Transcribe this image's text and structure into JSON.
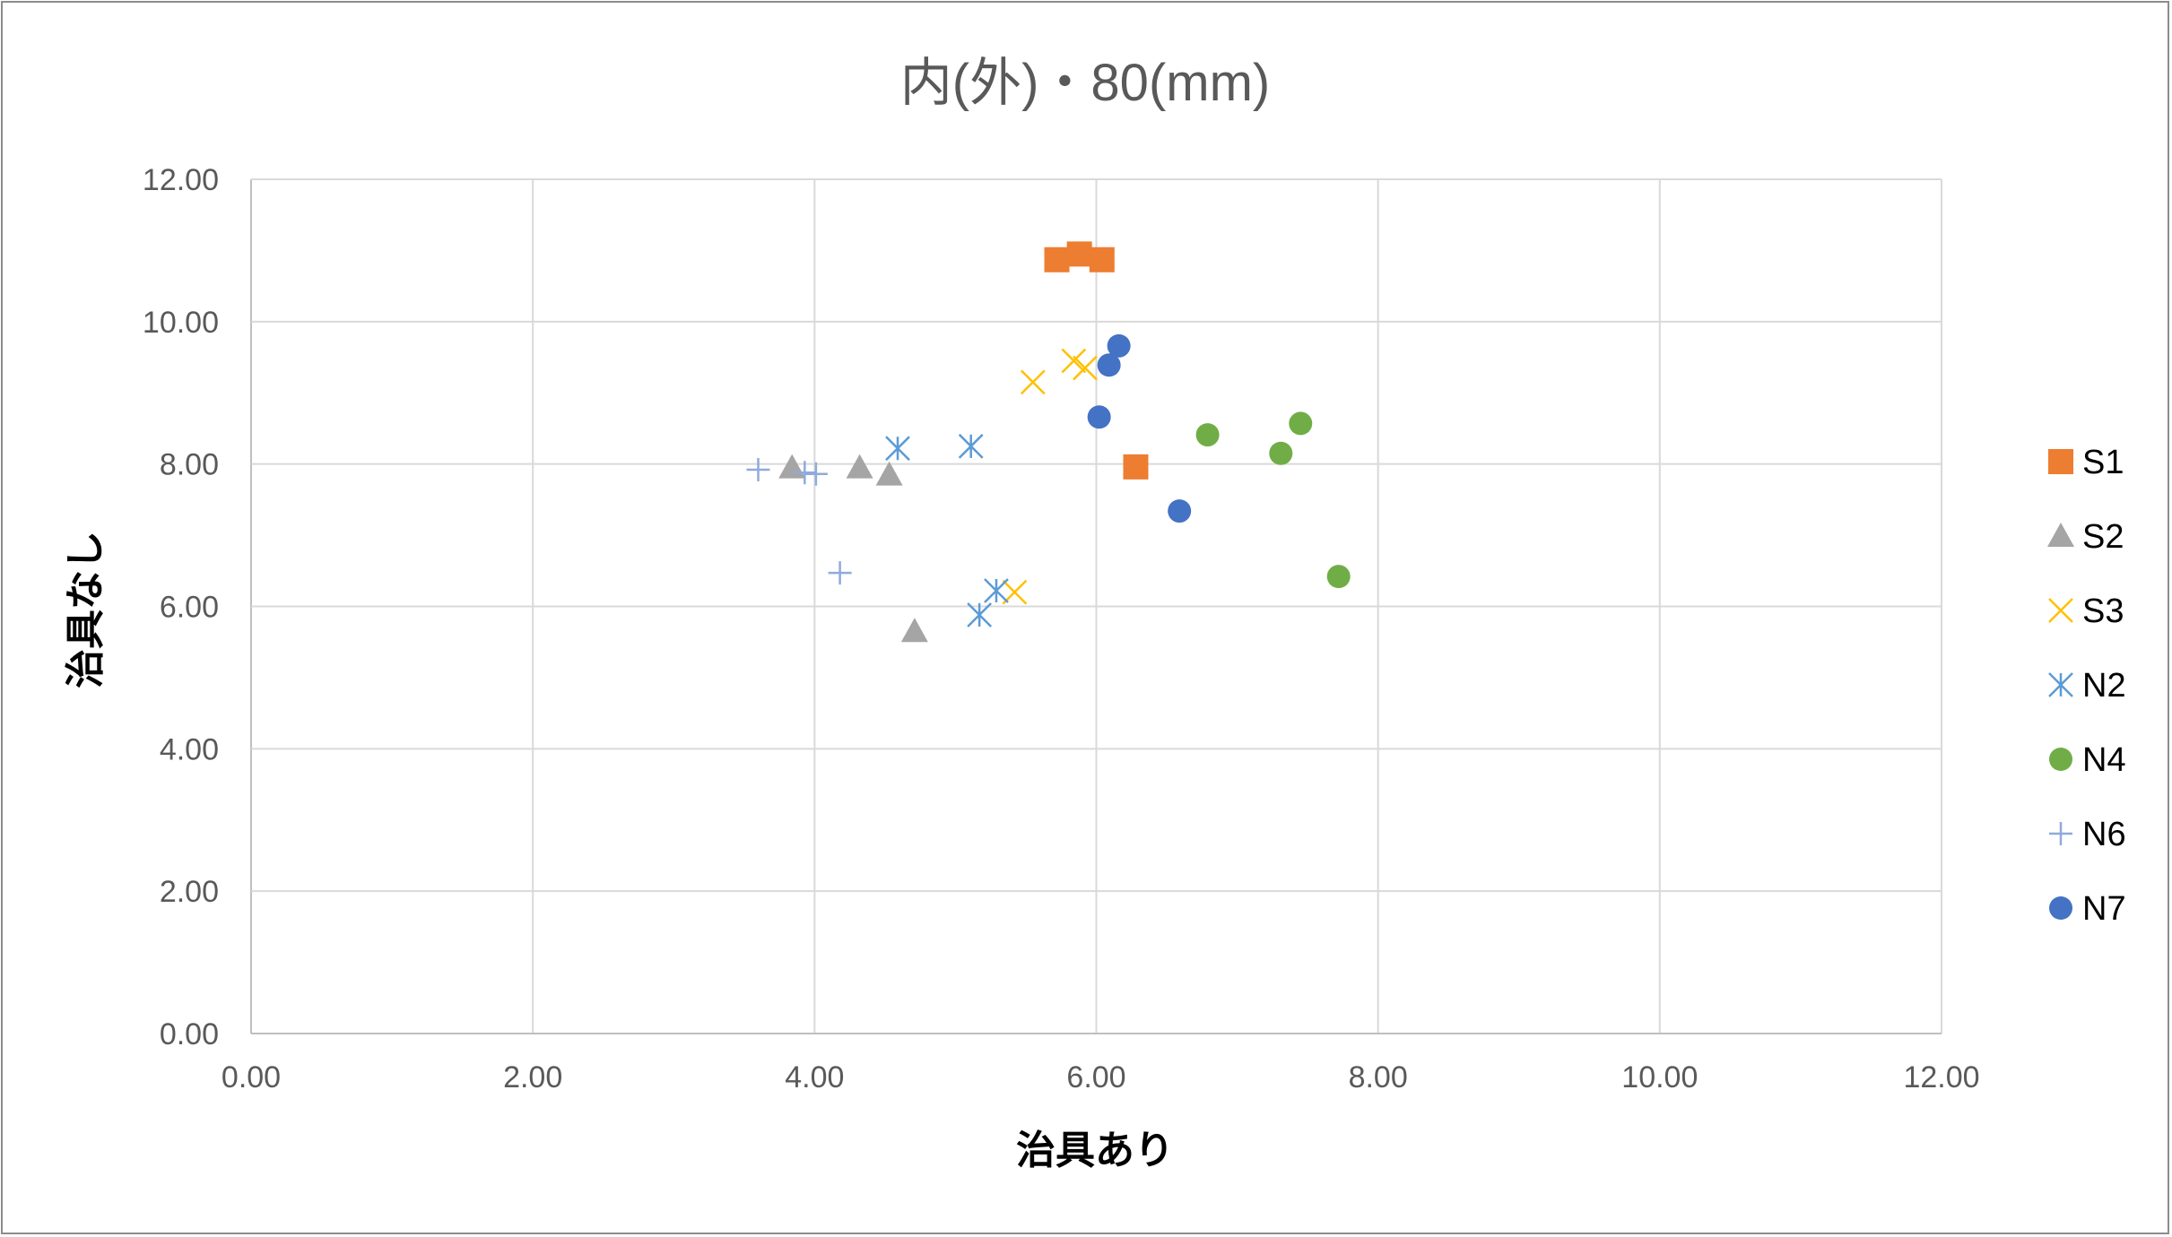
{
  "chart_data": {
    "type": "scatter",
    "title": "内(外)・80(mm)",
    "xlabel": "治具あり",
    "ylabel": "治具なし",
    "xlim": [
      0,
      12
    ],
    "ylim": [
      0,
      12
    ],
    "x_ticks": [
      "0.00",
      "2.00",
      "4.00",
      "6.00",
      "8.00",
      "10.00",
      "12.00"
    ],
    "y_ticks": [
      "0.00",
      "2.00",
      "4.00",
      "6.00",
      "8.00",
      "10.00",
      "12.00"
    ],
    "grid": true,
    "legend_position": "right",
    "series": [
      {
        "name": "S1",
        "marker": "square",
        "color": "#ED7D31",
        "points": [
          [
            5.72,
            10.87
          ],
          [
            5.88,
            10.95
          ],
          [
            6.04,
            10.87
          ],
          [
            6.28,
            7.96
          ]
        ]
      },
      {
        "name": "S2",
        "marker": "triangle",
        "color": "#A5A5A5",
        "points": [
          [
            3.84,
            7.95
          ],
          [
            4.32,
            7.95
          ],
          [
            4.53,
            7.85
          ],
          [
            4.71,
            5.65
          ]
        ]
      },
      {
        "name": "S3",
        "marker": "x",
        "color": "#FFC000",
        "points": [
          [
            5.55,
            9.15
          ],
          [
            5.84,
            9.45
          ],
          [
            5.92,
            9.35
          ],
          [
            5.42,
            6.2
          ]
        ]
      },
      {
        "name": "N2",
        "marker": "asterisk",
        "color": "#5B9BD5",
        "points": [
          [
            4.59,
            8.22
          ],
          [
            5.11,
            8.25
          ],
          [
            5.17,
            5.88
          ],
          [
            5.29,
            6.22
          ]
        ]
      },
      {
        "name": "N4",
        "marker": "circle",
        "color": "#70AD47",
        "points": [
          [
            6.79,
            8.41
          ],
          [
            7.31,
            8.15
          ],
          [
            7.45,
            8.57
          ],
          [
            7.72,
            6.42
          ]
        ]
      },
      {
        "name": "N6",
        "marker": "plus",
        "color": "#8FAADC",
        "points": [
          [
            3.6,
            7.92
          ],
          [
            3.93,
            7.88
          ],
          [
            4.01,
            7.86
          ],
          [
            4.18,
            6.47
          ]
        ]
      },
      {
        "name": "N7",
        "marker": "circle",
        "color": "#4472C4",
        "points": [
          [
            6.16,
            9.66
          ],
          [
            6.09,
            9.39
          ],
          [
            6.02,
            8.66
          ],
          [
            6.59,
            7.34
          ]
        ]
      }
    ]
  }
}
